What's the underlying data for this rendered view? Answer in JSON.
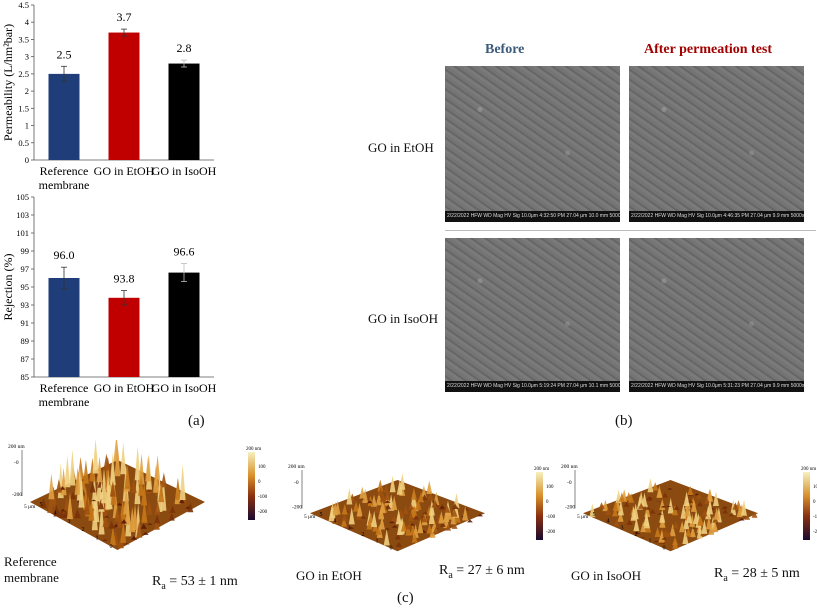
{
  "chart_data": [
    {
      "type": "bar",
      "categories": [
        "Reference membrane",
        "GO in EtOH",
        "GO in IsoOH"
      ],
      "values": [
        2.5,
        3.7,
        2.8
      ],
      "data_labels": [
        "2.5",
        "3.7",
        "2.8"
      ],
      "errors": [
        0.22,
        0.1,
        0.1
      ],
      "colors": [
        "#1f3d78",
        "#c00000",
        "#000000"
      ],
      "ylabel": "Permeability (L/hm²bar)",
      "ylim": [
        0,
        4.5
      ],
      "yticks": [
        "0",
        "0.5",
        "1",
        "1.5",
        "2",
        "2.5",
        "3",
        "3.5",
        "4",
        "4.5"
      ],
      "category_labels": [
        [
          "Reference",
          "membrane"
        ],
        [
          "GO in EtOH"
        ],
        [
          "GO in IsoOH"
        ]
      ]
    },
    {
      "type": "bar",
      "categories": [
        "Reference membrane",
        "GO in EtOH",
        "GO in IsoOH"
      ],
      "values": [
        96.0,
        93.8,
        96.6
      ],
      "data_labels": [
        "96.0",
        "93.8",
        "96.6"
      ],
      "errors": [
        1.2,
        0.8,
        1.0
      ],
      "colors": [
        "#1f3d78",
        "#c00000",
        "#000000"
      ],
      "ylabel": "Rejection (%)",
      "ylim": [
        85,
        105
      ],
      "yticks": [
        "85",
        "87",
        "89",
        "91",
        "93",
        "95",
        "97",
        "99",
        "101",
        "103",
        "105"
      ],
      "category_labels": [
        [
          "Reference",
          "membrane"
        ],
        [
          "GO in EtOH"
        ],
        [
          "GO in IsoOH"
        ]
      ]
    }
  ],
  "panel_labels": {
    "a": "(a)",
    "b": "(b)",
    "c": "(c)"
  },
  "sem": {
    "header_before": "Before",
    "header_after": "After permeation test",
    "header_before_color": "#3b5b7a",
    "header_after_color": "#a30000",
    "row1_label": "GO in EtOH",
    "row2_label": "GO in IsoOH",
    "image_bars": [
      "2/22/2022  HFW  WD  Mag  HV  Sig    10.0μm    4:32:50 PM 27.04 μm 10.0 mm 5000x 10.0 kV SE  Centro de Microscopia da UFMG",
      "2/22/2022  HFW  WD  Mag  HV  Sig    10.0μm    4:46:35 PM 27.04 μm 9.9 mm 5000x 10.0 kV SE  Centro de Microscopia da UFMG",
      "2/22/2022  HFW  WD  Mag  HV  Sig    10.0μm    5:19:24 PM 27.04 μm 10.1 mm 5000x 10.0 kV SE  Centro de Microscopia da UFMG",
      "2/22/2022  HFW  WD  Mag  HV  Sig    10.0μm    5:31:23 PM 27.04 μm 9.9 mm 5000x 10.0 kV SE  Centro de Microscopia da UFMG"
    ]
  },
  "afm": [
    {
      "label_lines": [
        "Reference",
        "membrane"
      ],
      "ra_value": "= 53 ± 1 nm"
    },
    {
      "label_lines": [
        "GO in EtOH"
      ],
      "ra_value": "= 27 ± 6 nm"
    },
    {
      "label_lines": [
        "GO in IsoOH"
      ],
      "ra_value": "= 28 ± 5 nm"
    }
  ],
  "afm_axis_text": {
    "z_top": "200 nm",
    "z_mid": "-0",
    "z_bot": "-200",
    "x_unit": "5 μm",
    "x_ticks": [
      "0",
      "1",
      "2",
      "3",
      "4",
      "5"
    ],
    "colorbar_top": "200 nm",
    "colorbar_ticks": [
      "100",
      "0",
      "-100",
      "-200"
    ]
  },
  "ra_symbol": "R",
  "ra_subscript": "a"
}
